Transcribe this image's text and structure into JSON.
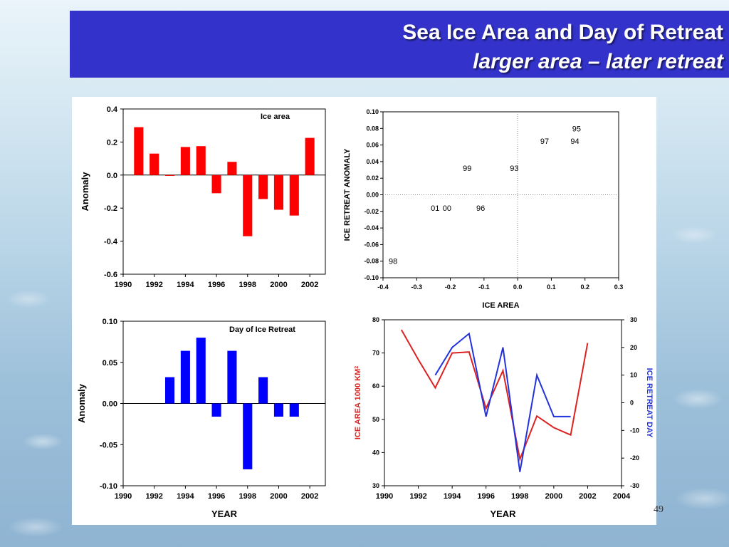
{
  "slide": {
    "title": "Sea Ice Area and Day of Retreat",
    "subtitle": "larger area – later retreat",
    "slide_number": "49"
  },
  "colors": {
    "title_bar": "#3333cc",
    "red": "#ff0000",
    "blue": "#0000ff",
    "line_red": "#dd2222",
    "line_blue": "#2233dd"
  },
  "chart_data": [
    {
      "type": "bar",
      "annotation": "Ice area",
      "ylabel": "Anomaly",
      "xlabel": "",
      "x": [
        1991,
        1992,
        1993,
        1994,
        1995,
        1996,
        1997,
        1998,
        1999,
        2000,
        2001,
        2002
      ],
      "values": [
        0.29,
        0.13,
        -0.005,
        0.17,
        0.175,
        -0.11,
        0.08,
        -0.37,
        -0.145,
        -0.21,
        -0.245,
        0.225
      ],
      "xlim": [
        1990,
        2003
      ],
      "ylim": [
        -0.6,
        0.4
      ],
      "xticks": [
        "1990",
        "1992",
        "1994",
        "1996",
        "1998",
        "2000",
        "2002"
      ],
      "yticks": [
        "-0.6",
        "-0.4",
        "-0.2",
        "0.0",
        "0.2",
        "0.4"
      ],
      "color": "#ff0000"
    },
    {
      "type": "scatter",
      "xlabel": "ICE AREA",
      "ylabel": "ICE RETREAT ANOMALY",
      "xlim": [
        -0.4,
        0.3
      ],
      "ylim": [
        -0.1,
        0.1
      ],
      "xticks": [
        "-0.4",
        "-0.3",
        "-0.2",
        "-0.1",
        "0.0",
        "0.1",
        "0.2",
        "0.3"
      ],
      "yticks": [
        "-0.10",
        "-0.08",
        "-0.06",
        "-0.04",
        "-0.02",
        "0.00",
        "0.02",
        "0.04",
        "0.06",
        "0.08",
        "0.10"
      ],
      "points": [
        {
          "label": "95",
          "x": 0.175,
          "y": 0.08
        },
        {
          "label": "97",
          "x": 0.08,
          "y": 0.065
        },
        {
          "label": "94",
          "x": 0.17,
          "y": 0.065
        },
        {
          "label": "99",
          "x": -0.15,
          "y": 0.032
        },
        {
          "label": "93",
          "x": -0.01,
          "y": 0.032
        },
        {
          "label": "01",
          "x": -0.245,
          "y": -0.016
        },
        {
          "label": "00",
          "x": -0.21,
          "y": -0.016
        },
        {
          "label": "96",
          "x": -0.11,
          "y": -0.016
        },
        {
          "label": "98",
          "x": -0.37,
          "y": -0.08
        }
      ]
    },
    {
      "type": "bar",
      "annotation": "Day of Ice Retreat",
      "ylabel": "Anomaly",
      "xlabel": "YEAR",
      "x": [
        1993,
        1994,
        1995,
        1996,
        1997,
        1998,
        1999,
        2000,
        2001
      ],
      "values": [
        0.032,
        0.064,
        0.08,
        -0.016,
        0.064,
        -0.08,
        0.032,
        -0.016,
        -0.016
      ],
      "xlim": [
        1990,
        2003
      ],
      "ylim": [
        -0.1,
        0.1
      ],
      "xticks": [
        "1990",
        "1992",
        "1994",
        "1996",
        "1998",
        "2000",
        "2002"
      ],
      "yticks": [
        "-0.10",
        "-0.05",
        "0.00",
        "0.05",
        "0.10"
      ],
      "color": "#0000ff"
    },
    {
      "type": "line",
      "xlabel": "YEAR",
      "ylabel": "ICE AREA 1000 KM",
      "ylabel_sup": "2",
      "y2label": "ICE RETREAT DAY",
      "xlim": [
        1990,
        2004
      ],
      "ylim": [
        30,
        80
      ],
      "y2lim": [
        -30,
        30
      ],
      "xticks": [
        "1990",
        "1992",
        "1994",
        "1996",
        "1998",
        "2000",
        "2002",
        "2004"
      ],
      "yticks": [
        "30",
        "40",
        "50",
        "60",
        "70",
        "80"
      ],
      "y2ticks": [
        "-30",
        "-20",
        "-10",
        "0",
        "10",
        "20",
        "30"
      ],
      "series": [
        {
          "axis": "left",
          "color": "#dd2222",
          "x": [
            1991,
            1992,
            1993,
            1994,
            1995,
            1996,
            1997,
            1998,
            1999,
            2000,
            2001,
            2002
          ],
          "values": [
            77,
            68,
            59.5,
            70,
            70.3,
            53.3,
            64.7,
            38,
            51,
            47.5,
            45.3,
            73
          ]
        },
        {
          "axis": "right",
          "color": "#2233dd",
          "x": [
            1993,
            1994,
            1995,
            1996,
            1997,
            1998,
            1999,
            2000,
            2001
          ],
          "values": [
            10,
            20,
            25,
            -5,
            20,
            -25,
            10,
            -5,
            -5
          ]
        }
      ]
    }
  ]
}
